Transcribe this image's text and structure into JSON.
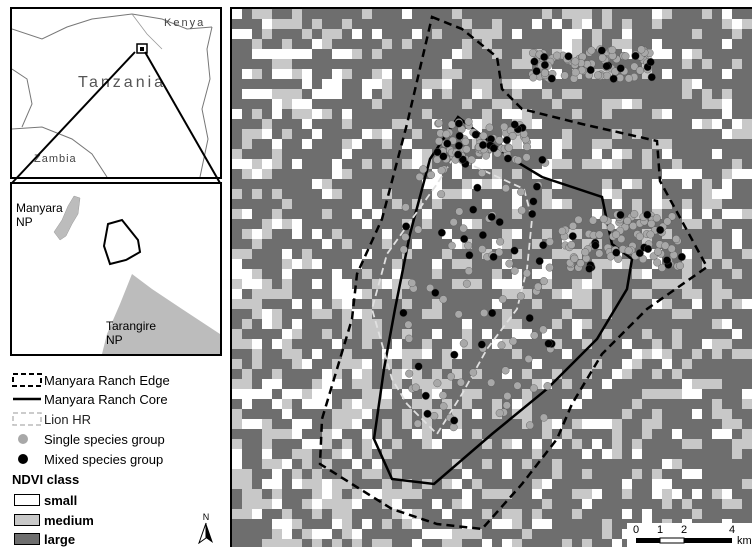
{
  "inset_regional": {
    "labels": {
      "kenya": "Kenya",
      "tanzania": "Tanzania",
      "zambia": "Zambia"
    }
  },
  "inset_local": {
    "labels": {
      "manyara": "Manyara\nNP",
      "tarangire": "Tarangire\nNP"
    }
  },
  "legend": {
    "items": [
      {
        "key": "edge",
        "label": "Manyara Ranch Edge"
      },
      {
        "key": "core",
        "label": "Manyara Ranch Core"
      },
      {
        "key": "lion",
        "label": "Lion HR"
      },
      {
        "key": "single",
        "label": "Single species group"
      },
      {
        "key": "mixed",
        "label": "Mixed species group"
      }
    ],
    "ndvi_title": "NDVI class",
    "ndvi_classes": [
      {
        "label": "small",
        "color": "#ffffff"
      },
      {
        "label": "medium",
        "color": "#c8c8c8"
      },
      {
        "label": "large",
        "color": "#6e6e6e"
      }
    ]
  },
  "north_arrow": {
    "label": "N"
  },
  "scale_bar": {
    "ticks": [
      "0",
      "1",
      "2",
      "4"
    ],
    "unit": "km"
  },
  "colors": {
    "large": "#6e6e6e",
    "medium": "#c8c8c8",
    "small": "#ffffff",
    "single": "#a8a8a8",
    "mixed": "#000000"
  }
}
